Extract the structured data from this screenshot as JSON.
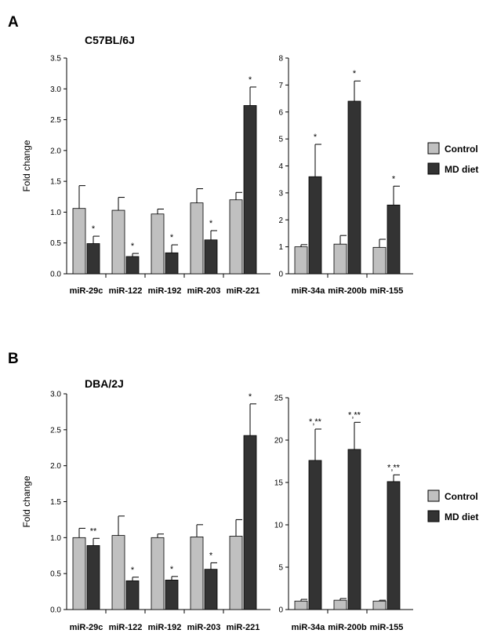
{
  "colors": {
    "control": "#c0c0c0",
    "md_diet": "#333333",
    "axis": "#000000"
  },
  "legend": {
    "control": "Control",
    "md_diet": "MD diet"
  },
  "chart_data": [
    {
      "type": "bar",
      "panel": "A",
      "title": "C57BL/6J",
      "ylabel": "Fold change",
      "xlabel": "",
      "ylim": [
        0,
        3.5
      ],
      "ytick_labels": [
        "0.0",
        "0.5",
        "1.0",
        "1.5",
        "2.0",
        "2.5",
        "3.0",
        "3.5"
      ],
      "categories": [
        "miR-29c",
        "miR-122",
        "miR-192",
        "miR-203",
        "miR-221"
      ],
      "series": [
        {
          "name": "Control",
          "values": [
            1.06,
            1.03,
            0.97,
            1.15,
            1.2
          ],
          "errors": [
            0.37,
            0.21,
            0.08,
            0.23,
            0.12
          ],
          "significance": [
            "",
            "",
            "",
            "",
            ""
          ]
        },
        {
          "name": "MD diet",
          "values": [
            0.49,
            0.28,
            0.34,
            0.55,
            2.73
          ],
          "errors": [
            0.12,
            0.05,
            0.13,
            0.15,
            0.3
          ],
          "significance": [
            "*",
            "*",
            "*",
            "*",
            "*"
          ]
        }
      ]
    },
    {
      "type": "bar",
      "panel": "A",
      "ylim": [
        0,
        8
      ],
      "ytick_labels": [
        "0",
        "1",
        "2",
        "3",
        "4",
        "5",
        "6",
        "7",
        "8"
      ],
      "categories": [
        "miR-34a",
        "miR-200b",
        "miR-155"
      ],
      "series": [
        {
          "name": "Control",
          "values": [
            1.0,
            1.1,
            0.98
          ],
          "errors": [
            0.08,
            0.32,
            0.3
          ],
          "significance": [
            "",
            "",
            ""
          ]
        },
        {
          "name": "MD diet",
          "values": [
            3.6,
            6.4,
            2.55
          ],
          "errors": [
            1.2,
            0.75,
            0.7
          ],
          "significance": [
            "*",
            "*",
            "*"
          ]
        }
      ]
    },
    {
      "type": "bar",
      "panel": "B",
      "title": "DBA/2J",
      "ylabel": "Fold change",
      "xlabel": "",
      "ylim": [
        0,
        3.0
      ],
      "ytick_labels": [
        "0.0",
        "0.5",
        "1.0",
        "1.5",
        "2.0",
        "2.5",
        "3.0"
      ],
      "categories": [
        "miR-29c",
        "miR-122",
        "miR-192",
        "miR-203",
        "miR-221"
      ],
      "series": [
        {
          "name": "Control",
          "values": [
            1.0,
            1.03,
            1.0,
            1.01,
            1.02
          ],
          "errors": [
            0.13,
            0.27,
            0.05,
            0.17,
            0.23
          ],
          "significance": [
            "",
            "",
            "",
            "",
            ""
          ]
        },
        {
          "name": "MD diet",
          "values": [
            0.89,
            0.4,
            0.41,
            0.56,
            2.42
          ],
          "errors": [
            0.1,
            0.05,
            0.05,
            0.09,
            0.44
          ],
          "significance": [
            "**",
            "*",
            "*",
            "*",
            "*"
          ]
        }
      ]
    },
    {
      "type": "bar",
      "panel": "B",
      "ylim": [
        0,
        25
      ],
      "ytick_labels": [
        "0",
        "5",
        "10",
        "15",
        "20",
        "25"
      ],
      "categories": [
        "miR-34a",
        "miR-200b",
        "miR-155"
      ],
      "series": [
        {
          "name": "Control",
          "values": [
            1.0,
            1.1,
            1.0
          ],
          "errors": [
            0.2,
            0.2,
            0.1
          ],
          "significance": [
            "",
            "",
            ""
          ]
        },
        {
          "name": "MD diet",
          "values": [
            17.6,
            18.9,
            15.1
          ],
          "errors": [
            3.7,
            3.2,
            0.8
          ],
          "significance": [
            "*,**",
            "*,**",
            "*,**"
          ]
        }
      ]
    }
  ]
}
